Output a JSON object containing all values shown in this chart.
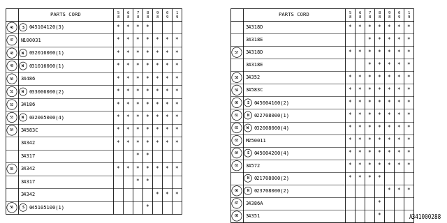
{
  "bg_color": "#ffffff",
  "col_headers": [
    "8\n5",
    "8\n6",
    "8\n7",
    "8\n8",
    "8\n9",
    "9\n0",
    "9\n1"
  ],
  "watermark": "A341000288",
  "left_table": {
    "title": "PARTS CORD",
    "rows": [
      {
        "num": "46",
        "num_prefix": "S",
        "part": "045104120(3)",
        "marks": [
          1,
          1,
          1,
          1,
          0,
          0,
          0
        ]
      },
      {
        "num": "47",
        "num_prefix": "",
        "part": "N100031",
        "marks": [
          1,
          1,
          1,
          1,
          1,
          1,
          1
        ]
      },
      {
        "num": "48",
        "num_prefix": "W",
        "part": "032016000(1)",
        "marks": [
          1,
          1,
          1,
          1,
          1,
          1,
          1
        ]
      },
      {
        "num": "49",
        "num_prefix": "W",
        "part": "031016000(1)",
        "marks": [
          1,
          1,
          1,
          1,
          1,
          1,
          1
        ]
      },
      {
        "num": "50",
        "num_prefix": "",
        "part": "34486",
        "marks": [
          1,
          1,
          1,
          1,
          1,
          1,
          1
        ]
      },
      {
        "num": "51",
        "num_prefix": "W",
        "part": "033006000(2)",
        "marks": [
          1,
          1,
          1,
          1,
          1,
          1,
          1
        ]
      },
      {
        "num": "52",
        "num_prefix": "",
        "part": "34186",
        "marks": [
          1,
          1,
          1,
          1,
          1,
          1,
          1
        ]
      },
      {
        "num": "53",
        "num_prefix": "W",
        "part": "032005000(4)",
        "marks": [
          1,
          1,
          1,
          1,
          1,
          1,
          1
        ]
      },
      {
        "num": "54",
        "num_prefix": "",
        "part": "34583C",
        "marks": [
          1,
          1,
          1,
          1,
          1,
          1,
          1
        ]
      },
      {
        "num": "",
        "num_prefix": "",
        "part": "34342",
        "marks": [
          1,
          1,
          1,
          1,
          1,
          1,
          1
        ]
      },
      {
        "num": "",
        "num_prefix": "",
        "part": "34317",
        "marks": [
          0,
          0,
          1,
          1,
          0,
          0,
          0
        ]
      },
      {
        "num": "55",
        "num_prefix": "",
        "part": "34342",
        "marks": [
          1,
          1,
          1,
          1,
          1,
          1,
          1
        ]
      },
      {
        "num": "",
        "num_prefix": "",
        "part": "34317",
        "marks": [
          0,
          0,
          1,
          1,
          0,
          0,
          0
        ]
      },
      {
        "num": "",
        "num_prefix": "",
        "part": "34342",
        "marks": [
          0,
          0,
          0,
          0,
          1,
          1,
          1
        ]
      },
      {
        "num": "56",
        "num_prefix": "S",
        "part": "045105100(1)",
        "marks": [
          0,
          0,
          0,
          1,
          0,
          0,
          0
        ]
      }
    ]
  },
  "right_table": {
    "title": "PARTS CORD",
    "rows": [
      {
        "num": "",
        "num_prefix": "",
        "part": "34318D",
        "marks": [
          1,
          1,
          1,
          1,
          1,
          1,
          1
        ]
      },
      {
        "num": "",
        "num_prefix": "",
        "part": "34318E",
        "marks": [
          0,
          0,
          1,
          1,
          1,
          1,
          1
        ]
      },
      {
        "num": "57",
        "num_prefix": "",
        "part": "34318D",
        "marks": [
          1,
          1,
          1,
          1,
          1,
          1,
          1
        ]
      },
      {
        "num": "",
        "num_prefix": "",
        "part": "34318E",
        "marks": [
          0,
          0,
          1,
          1,
          1,
          1,
          1
        ]
      },
      {
        "num": "58",
        "num_prefix": "",
        "part": "34352",
        "marks": [
          1,
          1,
          1,
          1,
          1,
          1,
          1
        ]
      },
      {
        "num": "59",
        "num_prefix": "",
        "part": "34583C",
        "marks": [
          1,
          1,
          1,
          1,
          1,
          1,
          1
        ]
      },
      {
        "num": "60",
        "num_prefix": "S",
        "part": "045004160(2)",
        "marks": [
          1,
          1,
          1,
          1,
          1,
          1,
          1
        ]
      },
      {
        "num": "61",
        "num_prefix": "N",
        "part": "022708000(1)",
        "marks": [
          1,
          1,
          1,
          1,
          1,
          1,
          1
        ]
      },
      {
        "num": "62",
        "num_prefix": "W",
        "part": "032008000(4)",
        "marks": [
          1,
          1,
          1,
          1,
          1,
          1,
          1
        ]
      },
      {
        "num": "63",
        "num_prefix": "",
        "part": "M250011",
        "marks": [
          1,
          1,
          1,
          1,
          1,
          1,
          1
        ]
      },
      {
        "num": "64",
        "num_prefix": "S",
        "part": "045004200(4)",
        "marks": [
          1,
          1,
          1,
          1,
          1,
          1,
          1
        ]
      },
      {
        "num": "65",
        "num_prefix": "",
        "part": "34572",
        "marks": [
          1,
          1,
          1,
          1,
          1,
          1,
          1
        ]
      },
      {
        "num": "",
        "num_prefix": "N",
        "part": "021708000(2)",
        "marks": [
          1,
          1,
          1,
          1,
          0,
          0,
          0
        ]
      },
      {
        "num": "66",
        "num_prefix": "N",
        "part": "023708000(2)",
        "marks": [
          0,
          0,
          0,
          0,
          1,
          1,
          1
        ]
      },
      {
        "num": "67",
        "num_prefix": "",
        "part": "34386A",
        "marks": [
          0,
          0,
          0,
          1,
          0,
          0,
          0
        ]
      },
      {
        "num": "68",
        "num_prefix": "",
        "part": "34351",
        "marks": [
          0,
          0,
          0,
          1,
          0,
          0,
          0
        ]
      }
    ]
  }
}
